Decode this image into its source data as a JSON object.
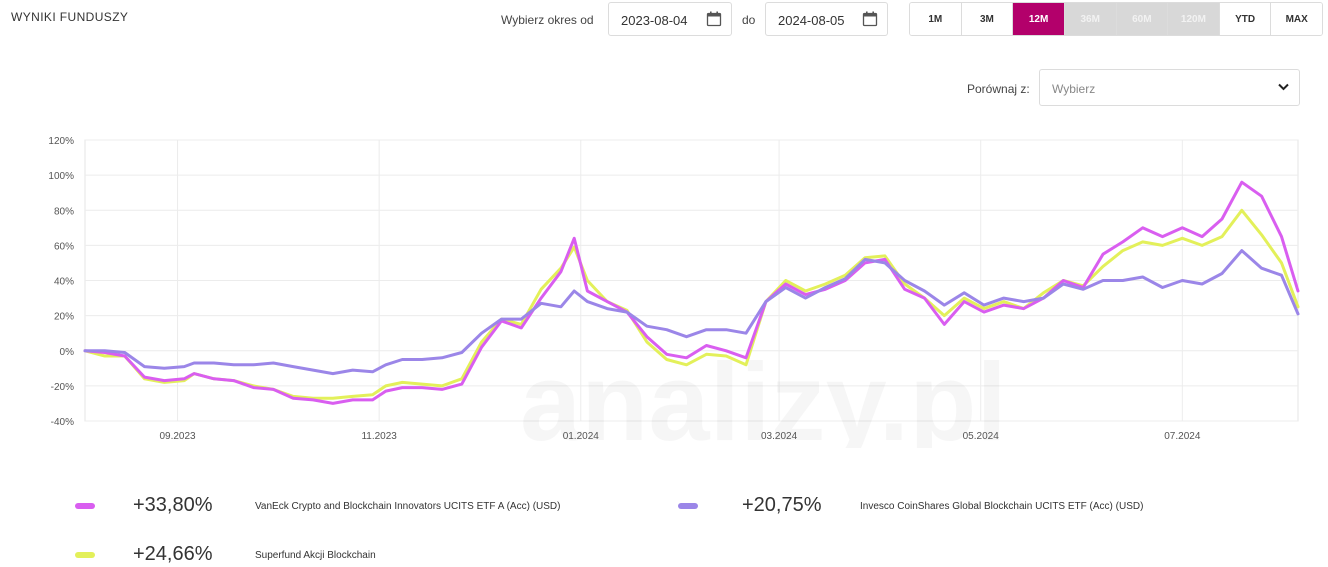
{
  "header": {
    "title": "WYNIKI FUNDUSZY",
    "range_from_label": "Wybierz okres od",
    "range_from_value": "2023-08-04",
    "range_to_label": "do",
    "range_to_value": "2024-08-05",
    "periods": [
      {
        "label": "1M",
        "state": "normal"
      },
      {
        "label": "3M",
        "state": "normal"
      },
      {
        "label": "12M",
        "state": "active"
      },
      {
        "label": "36M",
        "state": "disabled"
      },
      {
        "label": "60M",
        "state": "disabled"
      },
      {
        "label": "120M",
        "state": "disabled"
      },
      {
        "label": "YTD",
        "state": "normal"
      },
      {
        "label": "MAX",
        "state": "normal"
      }
    ],
    "compare_label": "Porównaj z:",
    "compare_placeholder": "Wybierz"
  },
  "colors": {
    "accent": "#b3006b"
  },
  "chart_data": {
    "type": "line",
    "watermark": "analizy.pl",
    "ylim": [
      -40,
      120
    ],
    "yticks": [
      "120%",
      "100%",
      "80%",
      "60%",
      "40%",
      "20%",
      "0%",
      "-20%",
      "-40%"
    ],
    "ytick_values": [
      120,
      100,
      80,
      60,
      40,
      20,
      0,
      -20,
      -40
    ],
    "xticks": [
      "09.2023",
      "11.2023",
      "01.2024",
      "03.2024",
      "05.2024",
      "07.2024"
    ],
    "xtick_dates": [
      "2023-09-01",
      "2023-11-01",
      "2024-01-01",
      "2024-03-01",
      "2024-05-01",
      "2024-07-01"
    ],
    "x_range": [
      "2023-08-04",
      "2024-08-05"
    ],
    "grid": true,
    "series": [
      {
        "name": "Superfund Akcji Blockchain",
        "color": "#e3f05a",
        "final": "+24,66%",
        "points": [
          [
            "2023-08-04",
            0
          ],
          [
            "2023-08-10",
            -3
          ],
          [
            "2023-08-16",
            -3
          ],
          [
            "2023-08-22",
            -16
          ],
          [
            "2023-08-28",
            -18
          ],
          [
            "2023-09-03",
            -17
          ],
          [
            "2023-09-06",
            -13
          ],
          [
            "2023-09-12",
            -16
          ],
          [
            "2023-09-18",
            -17
          ],
          [
            "2023-09-24",
            -20
          ],
          [
            "2023-09-30",
            -22
          ],
          [
            "2023-10-06",
            -26
          ],
          [
            "2023-10-12",
            -27
          ],
          [
            "2023-10-18",
            -27
          ],
          [
            "2023-10-24",
            -26
          ],
          [
            "2023-10-30",
            -25
          ],
          [
            "2023-11-03",
            -20
          ],
          [
            "2023-11-08",
            -18
          ],
          [
            "2023-11-14",
            -19
          ],
          [
            "2023-11-20",
            -20
          ],
          [
            "2023-11-26",
            -16
          ],
          [
            "2023-12-02",
            5
          ],
          [
            "2023-12-08",
            18
          ],
          [
            "2023-12-14",
            15
          ],
          [
            "2023-12-20",
            35
          ],
          [
            "2023-12-26",
            47
          ],
          [
            "2023-12-30",
            59
          ],
          [
            "2024-01-03",
            40
          ],
          [
            "2024-01-09",
            28
          ],
          [
            "2024-01-15",
            23
          ],
          [
            "2024-01-21",
            5
          ],
          [
            "2024-01-27",
            -5
          ],
          [
            "2024-02-02",
            -8
          ],
          [
            "2024-02-08",
            -2
          ],
          [
            "2024-02-14",
            -3
          ],
          [
            "2024-02-20",
            -8
          ],
          [
            "2024-02-26",
            28
          ],
          [
            "2024-03-03",
            40
          ],
          [
            "2024-03-09",
            34
          ],
          [
            "2024-03-15",
            38
          ],
          [
            "2024-03-21",
            43
          ],
          [
            "2024-03-27",
            53
          ],
          [
            "2024-04-02",
            54
          ],
          [
            "2024-04-08",
            38
          ],
          [
            "2024-04-14",
            30
          ],
          [
            "2024-04-20",
            20
          ],
          [
            "2024-04-26",
            30
          ],
          [
            "2024-05-02",
            24
          ],
          [
            "2024-05-08",
            28
          ],
          [
            "2024-05-14",
            24
          ],
          [
            "2024-05-20",
            33
          ],
          [
            "2024-05-26",
            40
          ],
          [
            "2024-06-01",
            37
          ],
          [
            "2024-06-07",
            48
          ],
          [
            "2024-06-13",
            57
          ],
          [
            "2024-06-19",
            62
          ],
          [
            "2024-06-25",
            60
          ],
          [
            "2024-07-01",
            64
          ],
          [
            "2024-07-07",
            60
          ],
          [
            "2024-07-13",
            65
          ],
          [
            "2024-07-19",
            80
          ],
          [
            "2024-07-25",
            66
          ],
          [
            "2024-07-31",
            50
          ],
          [
            "2024-08-05",
            25
          ]
        ]
      },
      {
        "name": "VanEck Crypto and Blockchain Innovators UCITS ETF A (Acc) (USD)",
        "color": "#d95ef0",
        "final": "+33,80%",
        "points": [
          [
            "2023-08-04",
            0
          ],
          [
            "2023-08-10",
            -1
          ],
          [
            "2023-08-16",
            -3
          ],
          [
            "2023-08-22",
            -15
          ],
          [
            "2023-08-28",
            -17
          ],
          [
            "2023-09-03",
            -16
          ],
          [
            "2023-09-06",
            -13
          ],
          [
            "2023-09-12",
            -16
          ],
          [
            "2023-09-18",
            -17
          ],
          [
            "2023-09-24",
            -21
          ],
          [
            "2023-09-30",
            -22
          ],
          [
            "2023-10-06",
            -27
          ],
          [
            "2023-10-12",
            -28
          ],
          [
            "2023-10-18",
            -30
          ],
          [
            "2023-10-24",
            -28
          ],
          [
            "2023-10-30",
            -28
          ],
          [
            "2023-11-03",
            -23
          ],
          [
            "2023-11-08",
            -21
          ],
          [
            "2023-11-14",
            -21
          ],
          [
            "2023-11-20",
            -22
          ],
          [
            "2023-11-26",
            -19
          ],
          [
            "2023-12-02",
            2
          ],
          [
            "2023-12-08",
            17
          ],
          [
            "2023-12-14",
            13
          ],
          [
            "2023-12-20",
            30
          ],
          [
            "2023-12-26",
            45
          ],
          [
            "2023-12-30",
            64
          ],
          [
            "2024-01-03",
            34
          ],
          [
            "2024-01-09",
            28
          ],
          [
            "2024-01-15",
            22
          ],
          [
            "2024-01-21",
            8
          ],
          [
            "2024-01-27",
            -2
          ],
          [
            "2024-02-02",
            -4
          ],
          [
            "2024-02-08",
            3
          ],
          [
            "2024-02-14",
            0
          ],
          [
            "2024-02-20",
            -4
          ],
          [
            "2024-02-26",
            28
          ],
          [
            "2024-03-03",
            38
          ],
          [
            "2024-03-09",
            32
          ],
          [
            "2024-03-15",
            35
          ],
          [
            "2024-03-21",
            40
          ],
          [
            "2024-03-27",
            50
          ],
          [
            "2024-04-02",
            52
          ],
          [
            "2024-04-08",
            35
          ],
          [
            "2024-04-14",
            30
          ],
          [
            "2024-04-20",
            15
          ],
          [
            "2024-04-26",
            28
          ],
          [
            "2024-05-02",
            22
          ],
          [
            "2024-05-08",
            26
          ],
          [
            "2024-05-14",
            24
          ],
          [
            "2024-05-20",
            30
          ],
          [
            "2024-05-26",
            40
          ],
          [
            "2024-06-01",
            36
          ],
          [
            "2024-06-07",
            55
          ],
          [
            "2024-06-13",
            62
          ],
          [
            "2024-06-19",
            70
          ],
          [
            "2024-06-25",
            65
          ],
          [
            "2024-07-01",
            70
          ],
          [
            "2024-07-07",
            65
          ],
          [
            "2024-07-13",
            75
          ],
          [
            "2024-07-19",
            96
          ],
          [
            "2024-07-25",
            88
          ],
          [
            "2024-07-31",
            65
          ],
          [
            "2024-08-05",
            34
          ]
        ]
      },
      {
        "name": "Invesco CoinShares Global Blockchain UCITS ETF (Acc) (USD)",
        "color": "#9b86e8",
        "final": "+20,75%",
        "points": [
          [
            "2023-08-04",
            0
          ],
          [
            "2023-08-10",
            0
          ],
          [
            "2023-08-16",
            -1
          ],
          [
            "2023-08-22",
            -9
          ],
          [
            "2023-08-28",
            -10
          ],
          [
            "2023-09-03",
            -9
          ],
          [
            "2023-09-06",
            -7
          ],
          [
            "2023-09-12",
            -7
          ],
          [
            "2023-09-18",
            -8
          ],
          [
            "2023-09-24",
            -8
          ],
          [
            "2023-09-30",
            -7
          ],
          [
            "2023-10-06",
            -9
          ],
          [
            "2023-10-12",
            -11
          ],
          [
            "2023-10-18",
            -13
          ],
          [
            "2023-10-24",
            -11
          ],
          [
            "2023-10-30",
            -12
          ],
          [
            "2023-11-03",
            -8
          ],
          [
            "2023-11-08",
            -5
          ],
          [
            "2023-11-14",
            -5
          ],
          [
            "2023-11-20",
            -4
          ],
          [
            "2023-11-26",
            -1
          ],
          [
            "2023-12-02",
            10
          ],
          [
            "2023-12-08",
            18
          ],
          [
            "2023-12-14",
            18
          ],
          [
            "2023-12-20",
            27
          ],
          [
            "2023-12-26",
            25
          ],
          [
            "2023-12-30",
            34
          ],
          [
            "2024-01-03",
            28
          ],
          [
            "2024-01-09",
            24
          ],
          [
            "2024-01-15",
            22
          ],
          [
            "2024-01-21",
            14
          ],
          [
            "2024-01-27",
            12
          ],
          [
            "2024-02-02",
            8
          ],
          [
            "2024-02-08",
            12
          ],
          [
            "2024-02-14",
            12
          ],
          [
            "2024-02-20",
            10
          ],
          [
            "2024-02-26",
            28
          ],
          [
            "2024-03-03",
            36
          ],
          [
            "2024-03-09",
            30
          ],
          [
            "2024-03-15",
            36
          ],
          [
            "2024-03-21",
            41
          ],
          [
            "2024-03-27",
            52
          ],
          [
            "2024-04-02",
            50
          ],
          [
            "2024-04-08",
            40
          ],
          [
            "2024-04-14",
            34
          ],
          [
            "2024-04-20",
            26
          ],
          [
            "2024-04-26",
            33
          ],
          [
            "2024-05-02",
            26
          ],
          [
            "2024-05-08",
            30
          ],
          [
            "2024-05-14",
            28
          ],
          [
            "2024-05-20",
            30
          ],
          [
            "2024-05-26",
            38
          ],
          [
            "2024-06-01",
            35
          ],
          [
            "2024-06-07",
            40
          ],
          [
            "2024-06-13",
            40
          ],
          [
            "2024-06-19",
            42
          ],
          [
            "2024-06-25",
            36
          ],
          [
            "2024-07-01",
            40
          ],
          [
            "2024-07-07",
            38
          ],
          [
            "2024-07-13",
            44
          ],
          [
            "2024-07-19",
            57
          ],
          [
            "2024-07-25",
            47
          ],
          [
            "2024-07-31",
            43
          ],
          [
            "2024-08-05",
            21
          ]
        ]
      }
    ]
  }
}
